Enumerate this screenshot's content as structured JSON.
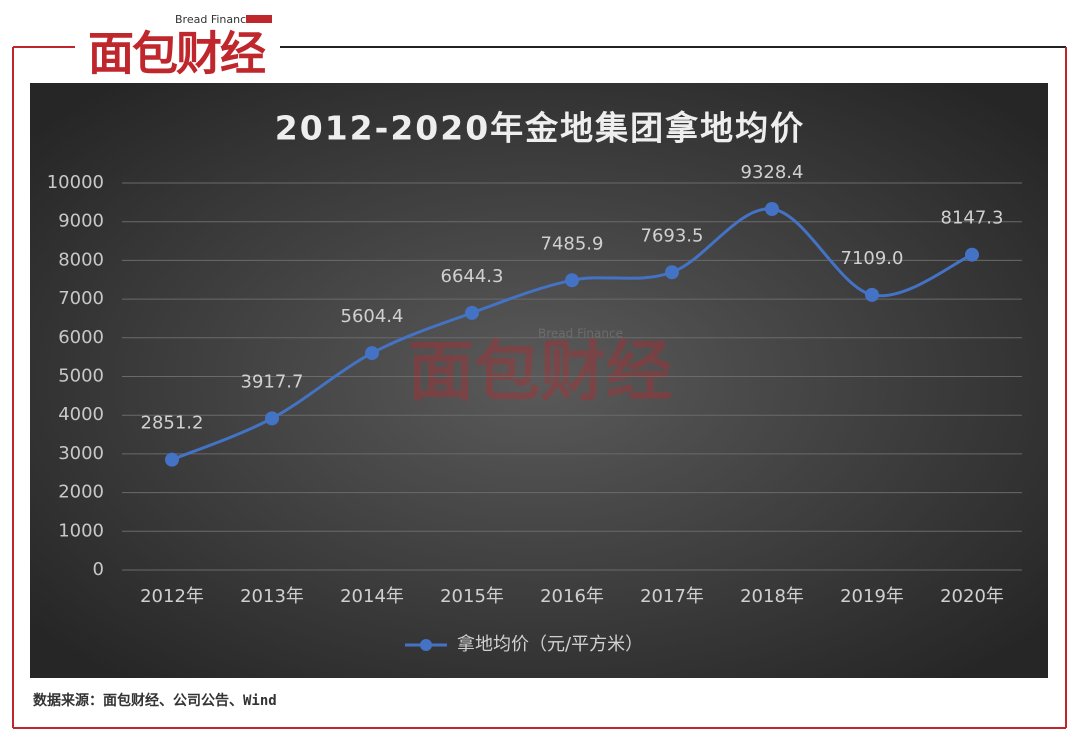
{
  "logo": {
    "brand": "面包财经",
    "tagline": "Bread Finance"
  },
  "source": "数据来源：面包财经、公司公告、Wind",
  "chart_data": {
    "type": "line",
    "title": "2012-2020年金地集团拿地均价",
    "categories": [
      "2012年",
      "2013年",
      "2014年",
      "2015年",
      "2016年",
      "2017年",
      "2018年",
      "2019年",
      "2020年"
    ],
    "series": [
      {
        "name": "拿地均价（元/平方米）",
        "color": "#4472c4",
        "values": [
          2851.2,
          3917.7,
          5604.4,
          6644.3,
          7485.9,
          7693.5,
          9328.4,
          7109.0,
          8147.3
        ],
        "value_labels": [
          "2851.2",
          "3917.7",
          "5604.4",
          "6644.3",
          "7485.9",
          "7693.5",
          "9328.4",
          "7109.0",
          "8147.3"
        ]
      }
    ],
    "ylim": [
      0,
      10000
    ],
    "yticks": [
      0,
      1000,
      2000,
      3000,
      4000,
      5000,
      6000,
      7000,
      8000,
      9000,
      10000
    ],
    "grid": true,
    "smooth": true,
    "legend": "bottom"
  }
}
